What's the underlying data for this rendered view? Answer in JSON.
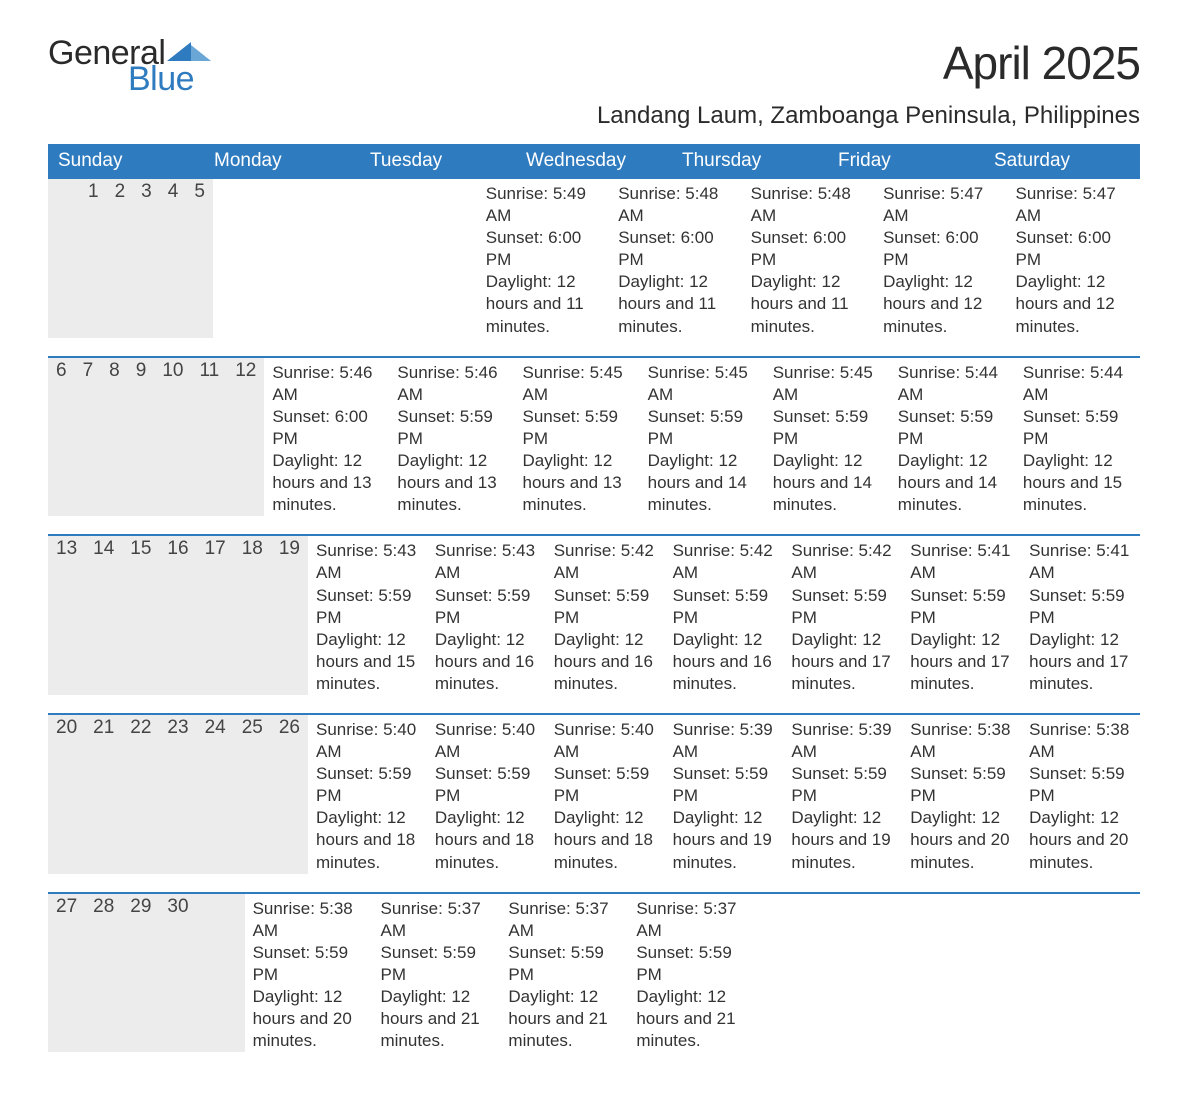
{
  "brand": {
    "general": "General",
    "blue": "Blue"
  },
  "title": "April 2025",
  "subtitle": "Landang Laum, Zamboanga Peninsula, Philippines",
  "colors": {
    "header_bg": "#2f7bbf",
    "header_fg": "#ffffff",
    "daynum_bg": "#ececec",
    "week_border": "#2f7bbf",
    "text": "#333333",
    "logo_blue": "#2f7bbf",
    "page_bg": "#ffffff"
  },
  "typography": {
    "title_fontsize_pt": 34,
    "subtitle_fontsize_pt": 18,
    "dow_fontsize_pt": 14,
    "daynum_fontsize_pt": 14,
    "body_fontsize_pt": 13
  },
  "dayNames": [
    "Sunday",
    "Monday",
    "Tuesday",
    "Wednesday",
    "Thursday",
    "Friday",
    "Saturday"
  ],
  "labels": {
    "sunrise": "Sunrise:",
    "sunset": "Sunset:",
    "daylight": "Daylight:"
  },
  "weeks": [
    [
      null,
      null,
      {
        "n": "1",
        "sunrise": "5:49 AM",
        "sunset": "6:00 PM",
        "daylight": "12 hours and 11 minutes."
      },
      {
        "n": "2",
        "sunrise": "5:48 AM",
        "sunset": "6:00 PM",
        "daylight": "12 hours and 11 minutes."
      },
      {
        "n": "3",
        "sunrise": "5:48 AM",
        "sunset": "6:00 PM",
        "daylight": "12 hours and 11 minutes."
      },
      {
        "n": "4",
        "sunrise": "5:47 AM",
        "sunset": "6:00 PM",
        "daylight": "12 hours and 12 minutes."
      },
      {
        "n": "5",
        "sunrise": "5:47 AM",
        "sunset": "6:00 PM",
        "daylight": "12 hours and 12 minutes."
      }
    ],
    [
      {
        "n": "6",
        "sunrise": "5:46 AM",
        "sunset": "6:00 PM",
        "daylight": "12 hours and 13 minutes."
      },
      {
        "n": "7",
        "sunrise": "5:46 AM",
        "sunset": "5:59 PM",
        "daylight": "12 hours and 13 minutes."
      },
      {
        "n": "8",
        "sunrise": "5:45 AM",
        "sunset": "5:59 PM",
        "daylight": "12 hours and 13 minutes."
      },
      {
        "n": "9",
        "sunrise": "5:45 AM",
        "sunset": "5:59 PM",
        "daylight": "12 hours and 14 minutes."
      },
      {
        "n": "10",
        "sunrise": "5:45 AM",
        "sunset": "5:59 PM",
        "daylight": "12 hours and 14 minutes."
      },
      {
        "n": "11",
        "sunrise": "5:44 AM",
        "sunset": "5:59 PM",
        "daylight": "12 hours and 14 minutes."
      },
      {
        "n": "12",
        "sunrise": "5:44 AM",
        "sunset": "5:59 PM",
        "daylight": "12 hours and 15 minutes."
      }
    ],
    [
      {
        "n": "13",
        "sunrise": "5:43 AM",
        "sunset": "5:59 PM",
        "daylight": "12 hours and 15 minutes."
      },
      {
        "n": "14",
        "sunrise": "5:43 AM",
        "sunset": "5:59 PM",
        "daylight": "12 hours and 16 minutes."
      },
      {
        "n": "15",
        "sunrise": "5:42 AM",
        "sunset": "5:59 PM",
        "daylight": "12 hours and 16 minutes."
      },
      {
        "n": "16",
        "sunrise": "5:42 AM",
        "sunset": "5:59 PM",
        "daylight": "12 hours and 16 minutes."
      },
      {
        "n": "17",
        "sunrise": "5:42 AM",
        "sunset": "5:59 PM",
        "daylight": "12 hours and 17 minutes."
      },
      {
        "n": "18",
        "sunrise": "5:41 AM",
        "sunset": "5:59 PM",
        "daylight": "12 hours and 17 minutes."
      },
      {
        "n": "19",
        "sunrise": "5:41 AM",
        "sunset": "5:59 PM",
        "daylight": "12 hours and 17 minutes."
      }
    ],
    [
      {
        "n": "20",
        "sunrise": "5:40 AM",
        "sunset": "5:59 PM",
        "daylight": "12 hours and 18 minutes."
      },
      {
        "n": "21",
        "sunrise": "5:40 AM",
        "sunset": "5:59 PM",
        "daylight": "12 hours and 18 minutes."
      },
      {
        "n": "22",
        "sunrise": "5:40 AM",
        "sunset": "5:59 PM",
        "daylight": "12 hours and 18 minutes."
      },
      {
        "n": "23",
        "sunrise": "5:39 AM",
        "sunset": "5:59 PM",
        "daylight": "12 hours and 19 minutes."
      },
      {
        "n": "24",
        "sunrise": "5:39 AM",
        "sunset": "5:59 PM",
        "daylight": "12 hours and 19 minutes."
      },
      {
        "n": "25",
        "sunrise": "5:38 AM",
        "sunset": "5:59 PM",
        "daylight": "12 hours and 20 minutes."
      },
      {
        "n": "26",
        "sunrise": "5:38 AM",
        "sunset": "5:59 PM",
        "daylight": "12 hours and 20 minutes."
      }
    ],
    [
      {
        "n": "27",
        "sunrise": "5:38 AM",
        "sunset": "5:59 PM",
        "daylight": "12 hours and 20 minutes."
      },
      {
        "n": "28",
        "sunrise": "5:37 AM",
        "sunset": "5:59 PM",
        "daylight": "12 hours and 21 minutes."
      },
      {
        "n": "29",
        "sunrise": "5:37 AM",
        "sunset": "5:59 PM",
        "daylight": "12 hours and 21 minutes."
      },
      {
        "n": "30",
        "sunrise": "5:37 AM",
        "sunset": "5:59 PM",
        "daylight": "12 hours and 21 minutes."
      },
      null,
      null,
      null
    ]
  ]
}
